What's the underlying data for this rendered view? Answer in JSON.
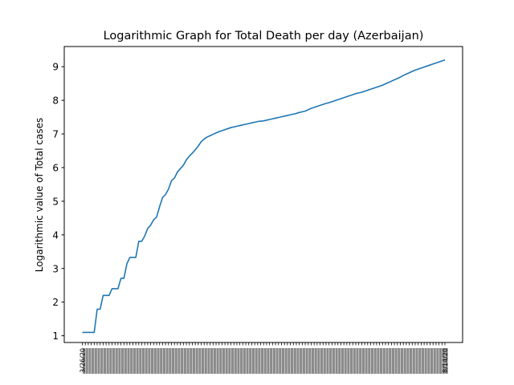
{
  "chart_data": {
    "type": "line",
    "title": "Logarithmic Graph for Total Death per day (Azerbaijan)",
    "xlabel": "",
    "ylabel": "Logarithmic value of Total cases",
    "ylim": [
      0.8,
      9.6
    ],
    "yticks": [
      1,
      2,
      3,
      4,
      5,
      6,
      7,
      8,
      9
    ],
    "grid": false,
    "line_color": "#1f77b4",
    "first_tick_label": "3/26/20",
    "last_tick_label": "8/14/20",
    "series": [
      {
        "values": [
          1.1,
          1.1,
          1.1,
          1.1,
          1.1,
          1.79,
          1.79,
          2.2,
          2.2,
          2.2,
          2.4,
          2.4,
          2.4,
          2.71,
          2.71,
          3.14,
          3.33,
          3.33,
          3.33,
          3.81,
          3.81,
          3.97,
          4.19,
          4.29,
          4.45,
          4.53,
          4.84,
          5.11,
          5.2,
          5.36,
          5.61,
          5.69,
          5.87,
          5.97,
          6.07,
          6.23,
          6.34,
          6.43,
          6.53,
          6.64,
          6.77,
          6.85,
          6.91,
          6.95,
          6.99,
          7.03,
          7.07,
          7.1,
          7.13,
          7.16,
          7.19,
          7.21,
          7.23,
          7.25,
          7.27,
          7.29,
          7.31,
          7.33,
          7.35,
          7.37,
          7.38,
          7.39,
          7.41,
          7.43,
          7.45,
          7.47,
          7.49,
          7.51,
          7.53,
          7.55,
          7.57,
          7.59,
          7.61,
          7.64,
          7.66,
          7.68,
          7.72,
          7.76,
          7.79,
          7.82,
          7.85,
          7.88,
          7.91,
          7.93,
          7.96,
          7.99,
          8.02,
          8.05,
          8.08,
          8.11,
          8.14,
          8.17,
          8.2,
          8.22,
          8.24,
          8.27,
          8.3,
          8.33,
          8.36,
          8.39,
          8.42,
          8.45,
          8.49,
          8.53,
          8.57,
          8.61,
          8.65,
          8.69,
          8.74,
          8.78,
          8.82,
          8.86,
          8.9,
          8.93,
          8.96,
          8.99,
          9.02,
          9.05,
          9.08,
          9.11,
          9.14,
          9.17,
          9.2
        ]
      }
    ]
  }
}
